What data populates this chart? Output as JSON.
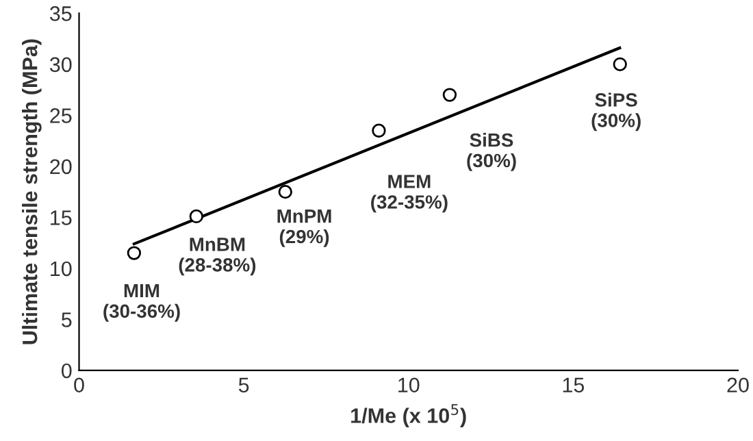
{
  "chart_data": {
    "type": "scatter",
    "xlabel": "1/Me (x 10$^{5}$)",
    "ylabel": "Ultimate tensile strength (MPa)",
    "xlim": [
      0,
      20
    ],
    "xticks": [
      0,
      5,
      10,
      15,
      20
    ],
    "ylim": [
      0,
      35
    ],
    "yticks": [
      0,
      5,
      10,
      15,
      20,
      25,
      30,
      35
    ],
    "grid": false,
    "legend": false,
    "series": [
      {
        "color": "#000000",
        "marker": "circle",
        "x": [
          1.67,
          3.56,
          6.26,
          9.1,
          11.25,
          16.42
        ],
        "values": [
          11.5,
          15.1,
          17.5,
          23.5,
          27.0,
          30.0
        ]
      },
      {
        "type": "line",
        "color": "#000000",
        "line_style": "solid",
        "marker": "none",
        "x": [
          1.67,
          16.41
        ],
        "values": [
          12.4,
          31.6
        ]
      }
    ],
    "annotations": [
      {
        "text": "MIM\n(30-36%)",
        "x": 1.67,
        "y": 11.5
      },
      {
        "text": "MnBM\n(28-38%)",
        "x": 3.56,
        "y": 15.1
      },
      {
        "text": "MnPM\n(29%)",
        "x": 6.26,
        "y": 17.5
      },
      {
        "text": "MEM\n(32-35%)",
        "x": 9.1,
        "y": 23.5
      },
      {
        "text": "SiBS\n(30%)",
        "x": 11.25,
        "y": 27.0
      },
      {
        "text": "SiPS\n(30%)",
        "x": 16.42,
        "y": 30.0
      }
    ]
  }
}
